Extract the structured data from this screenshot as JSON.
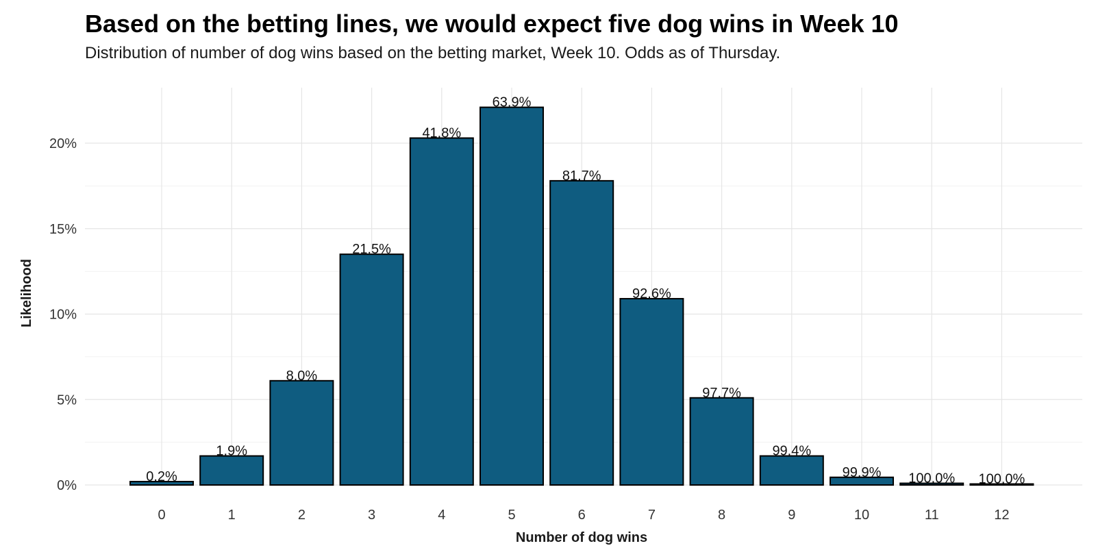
{
  "chart_data": {
    "type": "bar",
    "title": "Based on the betting lines, we would expect five dog wins in Week 10",
    "subtitle": "Distribution of number of dog wins based on the betting market, Week 10. Odds as of Thursday.",
    "xlabel": "Number of dog wins",
    "ylabel": "Likelihood",
    "categories": [
      "0",
      "1",
      "2",
      "3",
      "4",
      "5",
      "6",
      "7",
      "8",
      "9",
      "10",
      "11",
      "12"
    ],
    "values": [
      0.2,
      1.7,
      6.1,
      13.5,
      20.3,
      22.1,
      17.8,
      10.9,
      5.1,
      1.7,
      0.45,
      0.1,
      0.05
    ],
    "bar_labels": [
      "0.2%",
      "1.9%",
      "8.0%",
      "21.5%",
      "41.8%",
      "63.9%",
      "81.7%",
      "92.6%",
      "97.7%",
      "99.4%",
      "99.9%",
      "100.0%",
      "100.0%"
    ],
    "y_ticks": [
      0,
      5,
      10,
      15,
      20
    ],
    "y_tick_labels": [
      "0%",
      "5%",
      "10%",
      "15%",
      "20%"
    ],
    "ylim": [
      0,
      23
    ],
    "grid": true,
    "legend": "none",
    "colors": {
      "bar": "#0f5c80",
      "bar_outline": "#000000",
      "grid": "#e5e5e5"
    }
  }
}
